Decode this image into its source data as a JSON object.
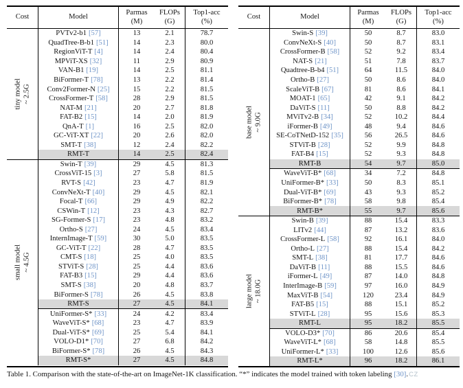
{
  "headers": {
    "cost": "Cost",
    "model": "Model",
    "params_l1": "Parmas",
    "params_l2": "(M)",
    "flops_l1": "FLOPs",
    "flops_l2": "(G)",
    "top1_l1": "Top1-acc",
    "top1_l2": "(%)"
  },
  "accent_colors": {
    "citation_blue": "#6d93c7",
    "highlight_gray": "#d8d8d8"
  },
  "caption": {
    "prefix": "Table 1. Comparison with the state-of-the-art on ImageNet-1K classification. “*” indicates the model trained with token labeling ",
    "cite": "[30]",
    "suffix": ".",
    "watermark": "CZ"
  },
  "chart_data": {
    "type": "table"
  },
  "tables": [
    {
      "name": "left",
      "sections": [
        {
          "cost_line1": "tiny model",
          "cost_line2": "~ 2.5G",
          "groups": [
            [
              {
                "model": "PVTv2-b1",
                "ref": "[57]",
                "params": "13",
                "flops": "2.1",
                "top1": "78.7"
              },
              {
                "model": "QuadTree-B-b1",
                "ref": "[51]",
                "params": "14",
                "flops": "2.3",
                "top1": "80.0"
              },
              {
                "model": "RegionViT-T",
                "ref": "[4]",
                "params": "14",
                "flops": "2.4",
                "top1": "80.4"
              },
              {
                "model": "MPViT-XS",
                "ref": "[32]",
                "params": "11",
                "flops": "2.9",
                "top1": "80.9"
              },
              {
                "model": "VAN-B1",
                "ref": "[19]",
                "params": "14",
                "flops": "2.5",
                "top1": "81.1"
              },
              {
                "model": "BiFormer-T",
                "ref": "[78]",
                "params": "13",
                "flops": "2.2",
                "top1": "81.4"
              },
              {
                "model": "Conv2Former-N",
                "ref": "[25]",
                "params": "15",
                "flops": "2.2",
                "top1": "81.5"
              },
              {
                "model": "CrossFormer-T",
                "ref": "[58]",
                "params": "28",
                "flops": "2.9",
                "top1": "81.5"
              },
              {
                "model": "NAT-M",
                "ref": "[21]",
                "params": "20",
                "flops": "2.7",
                "top1": "81.8"
              },
              {
                "model": "FAT-B2",
                "ref": "[15]",
                "params": "14",
                "flops": "2.0",
                "top1": "81.9"
              },
              {
                "model": "QnA-T",
                "ref": "[1]",
                "params": "16",
                "flops": "2.5",
                "top1": "82.0"
              },
              {
                "model": "GC-ViT-XT",
                "ref": "[22]",
                "params": "20",
                "flops": "2.6",
                "top1": "82.0"
              },
              {
                "model": "SMT-T",
                "ref": "[38]",
                "params": "12",
                "flops": "2.4",
                "top1": "82.2"
              },
              {
                "model": "RMT-T",
                "ref": "",
                "params": "14",
                "flops": "2.5",
                "top1": "82.4",
                "hl": true
              }
            ]
          ]
        },
        {
          "cost_line1": "small model",
          "cost_line2": "~ 4.5G",
          "groups": [
            [
              {
                "model": "Swin-T",
                "ref": "[39]",
                "params": "29",
                "flops": "4.5",
                "top1": "81.3"
              },
              {
                "model": "CrossViT-15",
                "ref": "[3]",
                "params": "27",
                "flops": "5.8",
                "top1": "81.5"
              },
              {
                "model": "RVT-S",
                "ref": "[42]",
                "params": "23",
                "flops": "4.7",
                "top1": "81.9"
              },
              {
                "model": "ConvNeXt-T",
                "ref": "[40]",
                "params": "29",
                "flops": "4.5",
                "top1": "82.1"
              },
              {
                "model": "Focal-T",
                "ref": "[66]",
                "params": "29",
                "flops": "4.9",
                "top1": "82.2"
              },
              {
                "model": "CSWin-T",
                "ref": "[12]",
                "params": "23",
                "flops": "4.3",
                "top1": "82.7"
              },
              {
                "model": "SG-Former-S",
                "ref": "[17]",
                "params": "23",
                "flops": "4.8",
                "top1": "83.2"
              },
              {
                "model": "Ortho-S",
                "ref": "[27]",
                "params": "24",
                "flops": "4.5",
                "top1": "83.4"
              },
              {
                "model": "InternImage-T",
                "ref": "[59]",
                "params": "30",
                "flops": "5.0",
                "top1": "83.5"
              },
              {
                "model": "GC-ViT-T",
                "ref": "[22]",
                "params": "28",
                "flops": "4.7",
                "top1": "83.5"
              },
              {
                "model": "CMT-S",
                "ref": "[18]",
                "params": "25",
                "flops": "4.0",
                "top1": "83.5"
              },
              {
                "model": "STViT-S",
                "ref": "[28]",
                "params": "25",
                "flops": "4.4",
                "top1": "83.6"
              },
              {
                "model": "FAT-B3",
                "ref": "[15]",
                "params": "29",
                "flops": "4.4",
                "top1": "83.6"
              },
              {
                "model": "SMT-S",
                "ref": "[38]",
                "params": "20",
                "flops": "4.8",
                "top1": "83.7"
              },
              {
                "model": "BiFormer-S",
                "ref": "[78]",
                "params": "26",
                "flops": "4.5",
                "top1": "83.8"
              },
              {
                "model": "RMT-S",
                "ref": "",
                "params": "27",
                "flops": "4.5",
                "top1": "84.1",
                "hl": true
              }
            ],
            [
              {
                "model": "UniFormer-S*",
                "ref": "[33]",
                "params": "24",
                "flops": "4.2",
                "top1": "83.4"
              },
              {
                "model": "WaveViT-S*",
                "ref": "[68]",
                "params": "23",
                "flops": "4.7",
                "top1": "83.9"
              },
              {
                "model": "Dual-ViT-S*",
                "ref": "[69]",
                "params": "25",
                "flops": "5.4",
                "top1": "84.1"
              },
              {
                "model": "VOLO-D1*",
                "ref": "[70]",
                "params": "27",
                "flops": "6.8",
                "top1": "84.2"
              },
              {
                "model": "BiFormer-S*",
                "ref": "[78]",
                "params": "26",
                "flops": "4.5",
                "top1": "84.3"
              },
              {
                "model": "RMT-S*",
                "ref": "",
                "params": "27",
                "flops": "4.5",
                "top1": "84.8",
                "hl": true
              }
            ]
          ]
        }
      ]
    },
    {
      "name": "right",
      "sections": [
        {
          "cost_line1": "base model",
          "cost_line2": "~ 9.0G",
          "groups": [
            [
              {
                "model": "Swin-S",
                "ref": "[39]",
                "params": "50",
                "flops": "8.7",
                "top1": "83.0"
              },
              {
                "model": "ConvNeXt-S",
                "ref": "[40]",
                "params": "50",
                "flops": "8.7",
                "top1": "83.1"
              },
              {
                "model": "CrossFormer-B",
                "ref": "[58]",
                "params": "52",
                "flops": "9.2",
                "top1": "83.4"
              },
              {
                "model": "NAT-S",
                "ref": "[21]",
                "params": "51",
                "flops": "7.8",
                "top1": "83.7"
              },
              {
                "model": "Quadtree-B-b4",
                "ref": "[51]",
                "params": "64",
                "flops": "11.5",
                "top1": "84.0"
              },
              {
                "model": "Ortho-B",
                "ref": "[27]",
                "params": "50",
                "flops": "8.6",
                "top1": "84.0"
              },
              {
                "model": "ScaleViT-B",
                "ref": "[67]",
                "params": "81",
                "flops": "8.6",
                "top1": "84.1"
              },
              {
                "model": "MOAT-1",
                "ref": "[65]",
                "params": "42",
                "flops": "9.1",
                "top1": "84.2"
              },
              {
                "model": "DaViT-S",
                "ref": "[11]",
                "params": "50",
                "flops": "8.8",
                "top1": "84.2"
              },
              {
                "model": "MViTv2-B",
                "ref": "[34]",
                "params": "52",
                "flops": "10.2",
                "top1": "84.4"
              },
              {
                "model": "iFormer-B",
                "ref": "[49]",
                "params": "48",
                "flops": "9.4",
                "top1": "84.6"
              },
              {
                "model": "SE-CoTNetD-152",
                "ref": "[35]",
                "params": "56",
                "flops": "26.5",
                "top1": "84.6"
              },
              {
                "model": "STViT-B",
                "ref": "[28]",
                "params": "52",
                "flops": "9.9",
                "top1": "84.8"
              },
              {
                "model": "FAT-B4",
                "ref": "[15]",
                "params": "52",
                "flops": "9.3",
                "top1": "84.8"
              },
              {
                "model": "RMT-B",
                "ref": "",
                "params": "54",
                "flops": "9.7",
                "top1": "85.0",
                "hl": true
              }
            ],
            [
              {
                "model": "WaveViT-B*",
                "ref": "[68]",
                "params": "34",
                "flops": "7.2",
                "top1": "84.8"
              },
              {
                "model": "UniFormer-B*",
                "ref": "[33]",
                "params": "50",
                "flops": "8.3",
                "top1": "85.1"
              },
              {
                "model": "Dual-ViT-B*",
                "ref": "[69]",
                "params": "43",
                "flops": "9.3",
                "top1": "85.2"
              },
              {
                "model": "BiFormer-B*",
                "ref": "[78]",
                "params": "58",
                "flops": "9.8",
                "top1": "85.4"
              },
              {
                "model": "RMT-B*",
                "ref": "",
                "params": "55",
                "flops": "9.7",
                "top1": "85.6",
                "hl": true
              }
            ]
          ]
        },
        {
          "cost_line1": "large model",
          "cost_line2": "~ 18.0G",
          "groups": [
            [
              {
                "model": "Swin-B",
                "ref": "[39]",
                "params": "88",
                "flops": "15.4",
                "top1": "83.3"
              },
              {
                "model": "LITv2",
                "ref": "[44]",
                "params": "87",
                "flops": "13.2",
                "top1": "83.6"
              },
              {
                "model": "CrossFormer-L",
                "ref": "[58]",
                "params": "92",
                "flops": "16.1",
                "top1": "84.0"
              },
              {
                "model": "Ortho-L",
                "ref": "[27]",
                "params": "88",
                "flops": "15.4",
                "top1": "84.2"
              },
              {
                "model": "SMT-L",
                "ref": "[38]",
                "params": "81",
                "flops": "17.7",
                "top1": "84.6"
              },
              {
                "model": "DaViT-B",
                "ref": "[11]",
                "params": "88",
                "flops": "15.5",
                "top1": "84.6"
              },
              {
                "model": "iFormer-L",
                "ref": "[49]",
                "params": "87",
                "flops": "14.0",
                "top1": "84.8"
              },
              {
                "model": "InterImage-B",
                "ref": "[59]",
                "params": "97",
                "flops": "16.0",
                "top1": "84.9"
              },
              {
                "model": "MaxViT-B",
                "ref": "[54]",
                "params": "120",
                "flops": "23.4",
                "top1": "84.9"
              },
              {
                "model": "FAT-B5",
                "ref": "[15]",
                "params": "88",
                "flops": "15.1",
                "top1": "85.2"
              },
              {
                "model": "STViT-L",
                "ref": "[28]",
                "params": "95",
                "flops": "15.6",
                "top1": "85.3"
              },
              {
                "model": "RMT-L",
                "ref": "",
                "params": "95",
                "flops": "18.2",
                "top1": "85.5",
                "hl": true
              }
            ],
            [
              {
                "model": "VOLO-D3*",
                "ref": "[70]",
                "params": "86",
                "flops": "20.6",
                "top1": "85.4"
              },
              {
                "model": "WaveViT-L*",
                "ref": "[68]",
                "params": "58",
                "flops": "14.8",
                "top1": "85.5"
              },
              {
                "model": "UniFormer-L*",
                "ref": "[33]",
                "params": "100",
                "flops": "12.6",
                "top1": "85.6"
              },
              {
                "model": "RMT-L*",
                "ref": "",
                "params": "96",
                "flops": "18.2",
                "top1": "86.1",
                "hl": true
              }
            ]
          ]
        }
      ]
    }
  ]
}
